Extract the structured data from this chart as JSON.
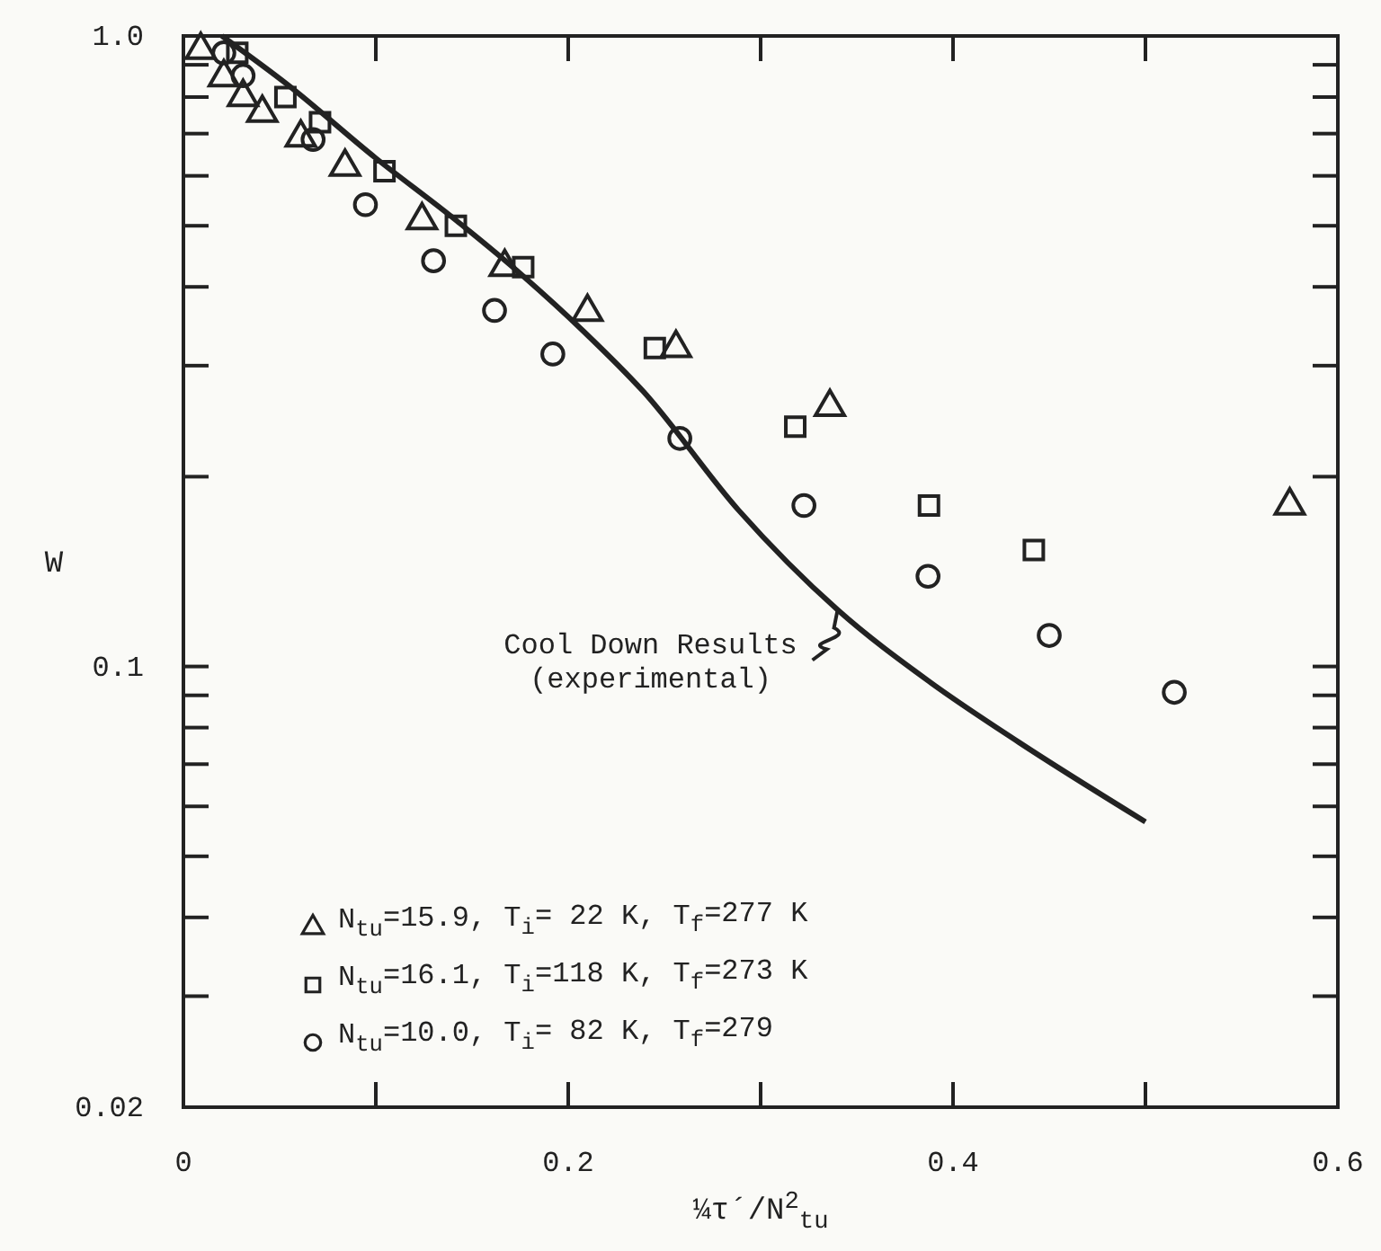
{
  "chart_data": {
    "type": "scatter",
    "xlabel": "¼τ´/N$^{2}$$_{tu}$",
    "ylabel": "W",
    "xlim": [
      0,
      0.6
    ],
    "xticks": [
      0,
      {
        "value": 0.1,
        "label": null
      },
      0.2,
      {
        "value": 0.3,
        "label": null
      },
      0.4,
      {
        "value": 0.5,
        "label": null
      },
      0.6
    ],
    "ylim": [
      0.02,
      1.0
    ],
    "log": true,
    "yticks": [
      {
        "value": 0.02,
        "label": "0.02"
      },
      {
        "value": 0.03,
        "label": null
      },
      {
        "value": 0.04,
        "label": null
      },
      {
        "value": 0.05,
        "label": null
      },
      {
        "value": 0.06,
        "label": null
      },
      {
        "value": 0.07,
        "label": null
      },
      {
        "value": 0.08,
        "label": null
      },
      {
        "value": 0.09,
        "label": null
      },
      0.1,
      {
        "value": 0.2,
        "label": null
      },
      {
        "value": 0.3,
        "label": null
      },
      {
        "value": 0.4,
        "label": null
      },
      {
        "value": 0.5,
        "label": null
      },
      {
        "value": 0.6,
        "label": null
      },
      {
        "value": 0.7,
        "label": null
      },
      {
        "value": 0.8,
        "label": null
      },
      {
        "value": 0.9,
        "label": null
      },
      {
        "value": 1.0,
        "label": "1.0"
      }
    ],
    "grid": false,
    "legend": "bottom left",
    "series": [
      {
        "type": "line",
        "color": "#222222",
        "marker": "none",
        "line_style": "solid",
        "x": [
          0.02,
          0.0535,
          0.1,
          0.14,
          0.177,
          0.208,
          0.239,
          0.2885,
          0.34,
          0.3875,
          0.434,
          0.5
        ],
        "values": [
          1.0,
          0.84,
          0.64,
          0.515,
          0.415,
          0.34,
          0.273,
          0.177,
          0.123,
          0.0947,
          0.0759,
          0.0567
        ]
      },
      {
        "name": "N$_{tu}$=15.9, T$_{i}$= 22 K, T$_{f}$=277 K",
        "color": "#222222",
        "marker": "triangle",
        "x": [
          0.009,
          0.021,
          0.031,
          0.041,
          0.061,
          0.084,
          0.124,
          0.167,
          0.21,
          0.256,
          0.336,
          0.575
        ],
        "values": [
          0.95,
          0.86,
          0.8,
          0.755,
          0.69,
          0.62,
          0.51,
          0.43,
          0.365,
          0.32,
          0.258,
          0.18
        ]
      },
      {
        "name": "N$_{tu}$=16.1, T$_{i}$=118 K, T$_{f}$=273 K",
        "color": "#222222",
        "marker": "square",
        "x": [
          0.028,
          0.053,
          0.071,
          0.1045,
          0.1416,
          0.1766,
          0.245,
          0.318,
          0.3875,
          0.442
        ],
        "values": [
          0.94,
          0.8,
          0.73,
          0.61,
          0.5,
          0.43,
          0.32,
          0.24,
          0.18,
          0.153
        ]
      },
      {
        "name": "N$_{tu}$=10.0, T$_{i}$= 82 K, T$_{f}$=279",
        "color": "#222222",
        "marker": "circle",
        "x": [
          0.021,
          0.031,
          0.0674,
          0.0946,
          0.13,
          0.1617,
          0.192,
          0.258,
          0.3225,
          0.387,
          0.45,
          0.515
        ],
        "values": [
          0.94,
          0.865,
          0.685,
          0.54,
          0.44,
          0.367,
          0.313,
          0.23,
          0.18,
          0.139,
          0.112,
          0.091
        ]
      }
    ],
    "annotations": [
      {
        "text": "Cool Down Results\n(experimental)",
        "x": 0.34,
        "y": 0.123
      }
    ]
  }
}
